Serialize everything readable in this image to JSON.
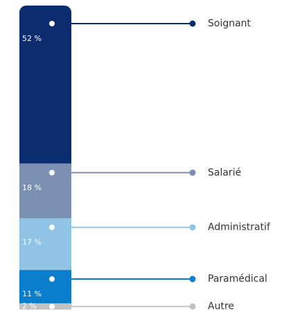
{
  "chart_data": {
    "type": "stacked-bar",
    "series": [
      {
        "name": "Soignant",
        "color": "#0b2c6f",
        "values": [
          52
        ],
        "value_labels": [
          "52 %"
        ]
      },
      {
        "name": "Salarié",
        "color": "#7b8fb2",
        "values": [
          18
        ],
        "value_labels": [
          "18 %"
        ]
      },
      {
        "name": "Administratif",
        "color": "#8fc4e6",
        "values": [
          17
        ],
        "value_labels": [
          "17 %"
        ]
      },
      {
        "name": "Paramédical",
        "color": "#0a7dcc",
        "values": [
          11
        ],
        "value_labels": [
          "11 %"
        ]
      },
      {
        "name": "Autre",
        "color": "#c2c2c2",
        "values": [
          2
        ],
        "value_labels": [
          "2 %"
        ]
      }
    ]
  }
}
